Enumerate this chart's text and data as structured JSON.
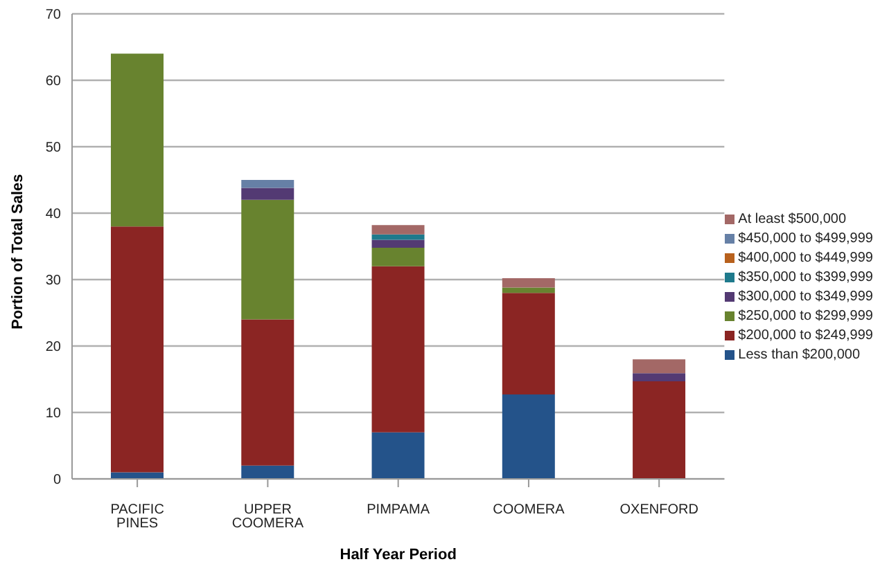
{
  "chart_data": {
    "type": "bar",
    "stacked": true,
    "xlabel": "Half Year Period",
    "ylabel": "Portion of Total Sales",
    "categories": [
      "PACIFIC PINES",
      "UPPER COOMERA",
      "PIMPAMA",
      "COOMERA",
      "OXENFORD"
    ],
    "series": [
      {
        "name": "Less than $200,000",
        "color": "#24538a",
        "values": [
          1,
          2,
          7,
          12.7,
          0
        ]
      },
      {
        "name": "$200,000 to $249,999",
        "color": "#8b2523",
        "values": [
          37,
          22,
          25,
          15.3,
          14.7
        ]
      },
      {
        "name": "$250,000 to $299,999",
        "color": "#68832f",
        "values": [
          26,
          18,
          2.8,
          0.8,
          0
        ]
      },
      {
        "name": "$300,000 to $349,999",
        "color": "#533a73",
        "values": [
          0,
          1.8,
          1.2,
          0,
          1.2
        ]
      },
      {
        "name": "$350,000 to $399,999",
        "color": "#1f7a8c",
        "values": [
          0,
          0,
          0.8,
          0,
          0
        ]
      },
      {
        "name": "$400,000 to $449,999",
        "color": "#b8611d",
        "values": [
          0,
          0,
          0,
          0,
          0
        ]
      },
      {
        "name": "$450,000 to $499,999",
        "color": "#6680a6",
        "values": [
          0,
          1.2,
          0,
          0,
          0
        ]
      },
      {
        "name": "At least $500,000",
        "color": "#a36866",
        "values": [
          0,
          0,
          1.4,
          1.4,
          2.1
        ]
      }
    ],
    "ylim": [
      0,
      70
    ],
    "yticks": [
      0,
      10,
      20,
      30,
      40,
      50,
      60,
      70
    ],
    "grid": "y",
    "legend": "right"
  }
}
